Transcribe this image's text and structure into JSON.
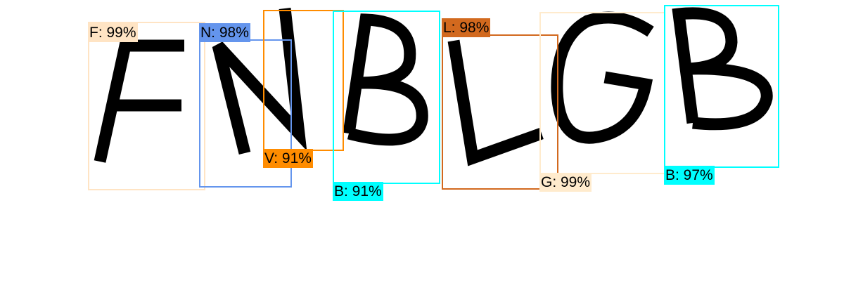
{
  "detections": [
    {
      "label": "F: 99%",
      "color": "#FFE4C4"
    },
    {
      "label": "N: 98%",
      "color": "#6495ED"
    },
    {
      "label": "V: 91%",
      "color": "#FF8C00"
    },
    {
      "label": "B: 91%",
      "color": "#00FFFF"
    },
    {
      "label": "L: 98%",
      "color": "#D2691E"
    },
    {
      "label": "G: 99%",
      "color": "#FFEBCD"
    },
    {
      "label": "B: 97%",
      "color": "#00FFFF"
    }
  ]
}
